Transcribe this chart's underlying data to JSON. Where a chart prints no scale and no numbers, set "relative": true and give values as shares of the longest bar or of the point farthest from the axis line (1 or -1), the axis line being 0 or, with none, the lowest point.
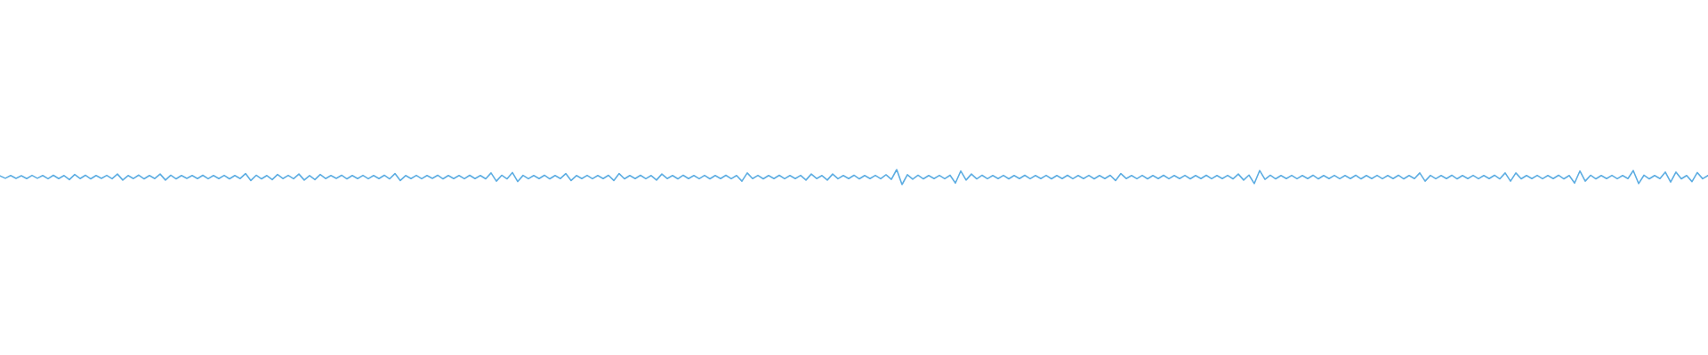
{
  "chart_data": {
    "type": "line",
    "relative": true,
    "color": "#5dade2",
    "marker": "none",
    "line_style": "solid",
    "categories": [
      null,
      null,
      null,
      null,
      null,
      null,
      null,
      null,
      null,
      null,
      null,
      null,
      null,
      null,
      null,
      null,
      null,
      null,
      null,
      null,
      null,
      null,
      null,
      null,
      null,
      null,
      null,
      null,
      null,
      null,
      null,
      null,
      null,
      null,
      null,
      null,
      null,
      null,
      null,
      null,
      null,
      null,
      null,
      null,
      null,
      null,
      null,
      null,
      null,
      null,
      null,
      null,
      null,
      null,
      null,
      null,
      null,
      null,
      null,
      null,
      null,
      null,
      null,
      null,
      null,
      null,
      null,
      null,
      null,
      null,
      null,
      null,
      null,
      null,
      null,
      null,
      null,
      null,
      null,
      null,
      null,
      null,
      null,
      null,
      null,
      null,
      null,
      null,
      null,
      null,
      null,
      null,
      null,
      null,
      null,
      null,
      null,
      null,
      null,
      null,
      null,
      null,
      null,
      null,
      null,
      null,
      null,
      null,
      null,
      null,
      null,
      null,
      null,
      null,
      null,
      null,
      null,
      null,
      null,
      null,
      null,
      null,
      null,
      null,
      null,
      null,
      null,
      null,
      null,
      null,
      null,
      null,
      null,
      null,
      null,
      null,
      null,
      null,
      null,
      null,
      null,
      null,
      null,
      null,
      null,
      null,
      null,
      null,
      null,
      null,
      null,
      null,
      null,
      null,
      null,
      null,
      null,
      null,
      null,
      null,
      null,
      null,
      null,
      null,
      null,
      null,
      null,
      null,
      null,
      null,
      null,
      null,
      null,
      null,
      null,
      null,
      null,
      null,
      null,
      null,
      null,
      null,
      null,
      null,
      null,
      null,
      null,
      null,
      null,
      null,
      null,
      null,
      null,
      null,
      null,
      null,
      null,
      null,
      null,
      null,
      null,
      null,
      null,
      null,
      null,
      null,
      null,
      null,
      null,
      null,
      null,
      null,
      null,
      null,
      null,
      null,
      null,
      null,
      null,
      null,
      null,
      null,
      null,
      null,
      null,
      null,
      null,
      null,
      null,
      null,
      null,
      null,
      null,
      null,
      null,
      null,
      null,
      null,
      null,
      null,
      null,
      null,
      null,
      null,
      null,
      null,
      null,
      null,
      null,
      null,
      null,
      null,
      null,
      null,
      null,
      null,
      null,
      null,
      null,
      null,
      null,
      null,
      null,
      null,
      null,
      null,
      null,
      null,
      null,
      null,
      null,
      null,
      null,
      null,
      null,
      null,
      null,
      null,
      null,
      null,
      null,
      null,
      null,
      null,
      null,
      null,
      null,
      null,
      null,
      null,
      null,
      null,
      null,
      null,
      null,
      null,
      null,
      null,
      null,
      null,
      null,
      null,
      null,
      null,
      null,
      null,
      null,
      null,
      null,
      null,
      null,
      null,
      null,
      null,
      null,
      null,
      null,
      null,
      null,
      null,
      null
    ],
    "values": [
      0.58,
      0.42,
      0.6,
      0.41,
      0.59,
      0.4,
      0.61,
      0.42,
      0.6,
      0.39,
      0.62,
      0.4,
      0.6,
      0.33,
      0.67,
      0.4,
      0.62,
      0.38,
      0.6,
      0.41,
      0.61,
      0.39,
      0.7,
      0.3,
      0.6,
      0.4,
      0.63,
      0.38,
      0.6,
      0.4,
      0.7,
      0.3,
      0.62,
      0.38,
      0.6,
      0.41,
      0.6,
      0.4,
      0.62,
      0.39,
      0.6,
      0.4,
      0.61,
      0.38,
      0.6,
      0.4,
      0.73,
      0.27,
      0.62,
      0.38,
      0.6,
      0.33,
      0.67,
      0.4,
      0.61,
      0.39,
      0.7,
      0.3,
      0.6,
      0.33,
      0.67,
      0.4,
      0.6,
      0.41,
      0.62,
      0.38,
      0.6,
      0.4,
      0.61,
      0.39,
      0.6,
      0.4,
      0.62,
      0.38,
      0.73,
      0.27,
      0.6,
      0.4,
      0.61,
      0.39,
      0.6,
      0.41,
      0.62,
      0.38,
      0.6,
      0.4,
      0.6,
      0.39,
      0.62,
      0.4,
      0.6,
      0.38,
      0.77,
      0.23,
      0.62,
      0.38,
      0.8,
      0.2,
      0.61,
      0.39,
      0.6,
      0.4,
      0.62,
      0.38,
      0.6,
      0.4,
      0.73,
      0.27,
      0.6,
      0.4,
      0.61,
      0.39,
      0.6,
      0.4,
      0.62,
      0.27,
      0.73,
      0.38,
      0.6,
      0.4,
      0.62,
      0.39,
      0.6,
      0.3,
      0.7,
      0.4,
      0.6,
      0.38,
      0.62,
      0.4,
      0.6,
      0.39,
      0.61,
      0.38,
      0.6,
      0.4,
      0.62,
      0.39,
      0.6,
      0.23,
      0.77,
      0.4,
      0.61,
      0.38,
      0.6,
      0.4,
      0.62,
      0.39,
      0.6,
      0.4,
      0.61,
      0.3,
      0.7,
      0.4,
      0.6,
      0.3,
      0.7,
      0.39,
      0.6,
      0.4,
      0.62,
      0.38,
      0.6,
      0.4,
      0.61,
      0.39,
      0.65,
      0.35,
      1,
      0,
      0.66,
      0.36,
      0.62,
      0.38,
      0.6,
      0.4,
      0.61,
      0.39,
      0.62,
      0.1,
      0.9,
      0.3,
      0.7,
      0.38,
      0.62,
      0.39,
      0.6,
      0.4,
      0.61,
      0.38,
      0.6,
      0.4,
      0.62,
      0.39,
      0.6,
      0.4,
      0.61,
      0.38,
      0.6,
      0.4,
      0.62,
      0.39,
      0.6,
      0.4,
      0.61,
      0.38,
      0.6,
      0.4,
      0.62,
      0.27,
      0.73,
      0.4,
      0.6,
      0.39,
      0.61,
      0.38,
      0.6,
      0.4,
      0.62,
      0.39,
      0.6,
      0.4,
      0.61,
      0.38,
      0.6,
      0.4,
      0.62,
      0.39,
      0.6,
      0.4,
      0.61,
      0.38,
      0.7,
      0.3,
      0.63,
      0.07,
      0.93,
      0.35,
      0.62,
      0.38,
      0.6,
      0.4,
      0.61,
      0.39,
      0.6,
      0.4,
      0.62,
      0.38,
      0.6,
      0.4,
      0.61,
      0.39,
      0.6,
      0.4,
      0.62,
      0.38,
      0.6,
      0.4,
      0.61,
      0.39,
      0.6,
      0.4,
      0.62,
      0.38,
      0.6,
      0.4,
      0.77,
      0.23,
      0.61,
      0.39,
      0.6,
      0.4,
      0.62,
      0.38,
      0.6,
      0.4,
      0.61,
      0.39,
      0.6,
      0.4,
      0.62,
      0.38,
      0.77,
      0.23,
      0.77,
      0.38,
      0.6,
      0.4,
      0.61,
      0.39,
      0.6,
      0.4,
      0.62,
      0.38,
      0.6,
      0.1,
      0.9,
      0.23,
      0.62,
      0.38,
      0.6,
      0.4,
      0.61,
      0.39,
      0.6,
      0.4,
      0.93,
      0.07,
      0.62,
      0.38,
      0.6,
      0.4,
      0.83,
      0.17,
      0.83,
      0.38,
      0.6,
      0.2,
      0.8,
      0.39,
      0.6
    ]
  }
}
